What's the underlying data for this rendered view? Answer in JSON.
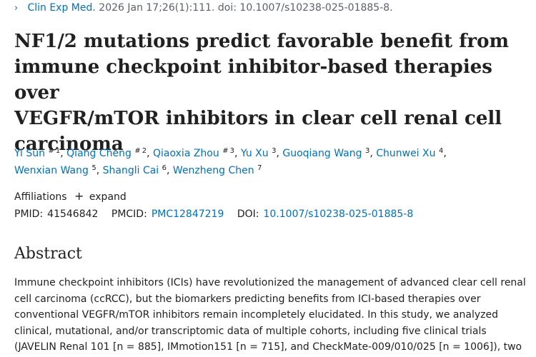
{
  "citation": {
    "chevron": "›",
    "journal": "Clin Exp Med.",
    "details": "2026 Jan 17;26(1):111. doi: 10.1007/s10238-025-01885-8."
  },
  "title": {
    "lines": [
      "NF1/2 mutations predict favorable benefit from",
      "immune checkpoint inhibitor-based therapies over",
      "VEGFR/mTOR inhibitors in clear cell renal cell",
      "carcinoma"
    ]
  },
  "authors": [
    {
      "name": "Yi Sun",
      "eq": "#",
      "aff": "1"
    },
    {
      "name": "Qiang Cheng",
      "eq": "#",
      "aff": "2"
    },
    {
      "name": "Qiaoxia Zhou",
      "eq": "#",
      "aff": "3"
    },
    {
      "name": "Yu Xu",
      "eq": "",
      "aff": "3"
    },
    {
      "name": "Guoqiang Wang",
      "eq": "",
      "aff": "3"
    },
    {
      "name": "Chunwei Xu",
      "eq": "",
      "aff": "4"
    },
    {
      "name": "Wenxian Wang",
      "eq": "",
      "aff": "5"
    },
    {
      "name": "Shangli Cai",
      "eq": "",
      "aff": "6"
    },
    {
      "name": "Wenzheng Chen",
      "eq": "",
      "aff": "7"
    }
  ],
  "affiliations": {
    "label": "Affiliations",
    "plus": "+",
    "expand": "expand"
  },
  "identifiers": {
    "pmid_label": "PMID:",
    "pmid": "41546842",
    "pmcid_label": "PMCID:",
    "pmcid": "PMC12847219",
    "doi_label": "DOI:",
    "doi": "10.1007/s10238-025-01885-8"
  },
  "abstract": {
    "heading": "Abstract",
    "lines": [
      "Immune checkpoint inhibitors (ICIs) have revolutionized the management of advanced clear cell renal",
      "cell carcinoma (ccRCC), but the biomarkers predicting benefits from ICI-based therapies over",
      "conventional VEGFR/mTOR inhibitors remain incompletely elucidated. In this study, we analyzed",
      "clinical, mutational, and/or transcriptomic data of multiple cohorts, including five clinical trials",
      "(JAVELIN Renal 101 [n = 885], IMmotion151 [n = 715], and CheckMate-009/010/025 [n = 1006]), two"
    ]
  }
}
